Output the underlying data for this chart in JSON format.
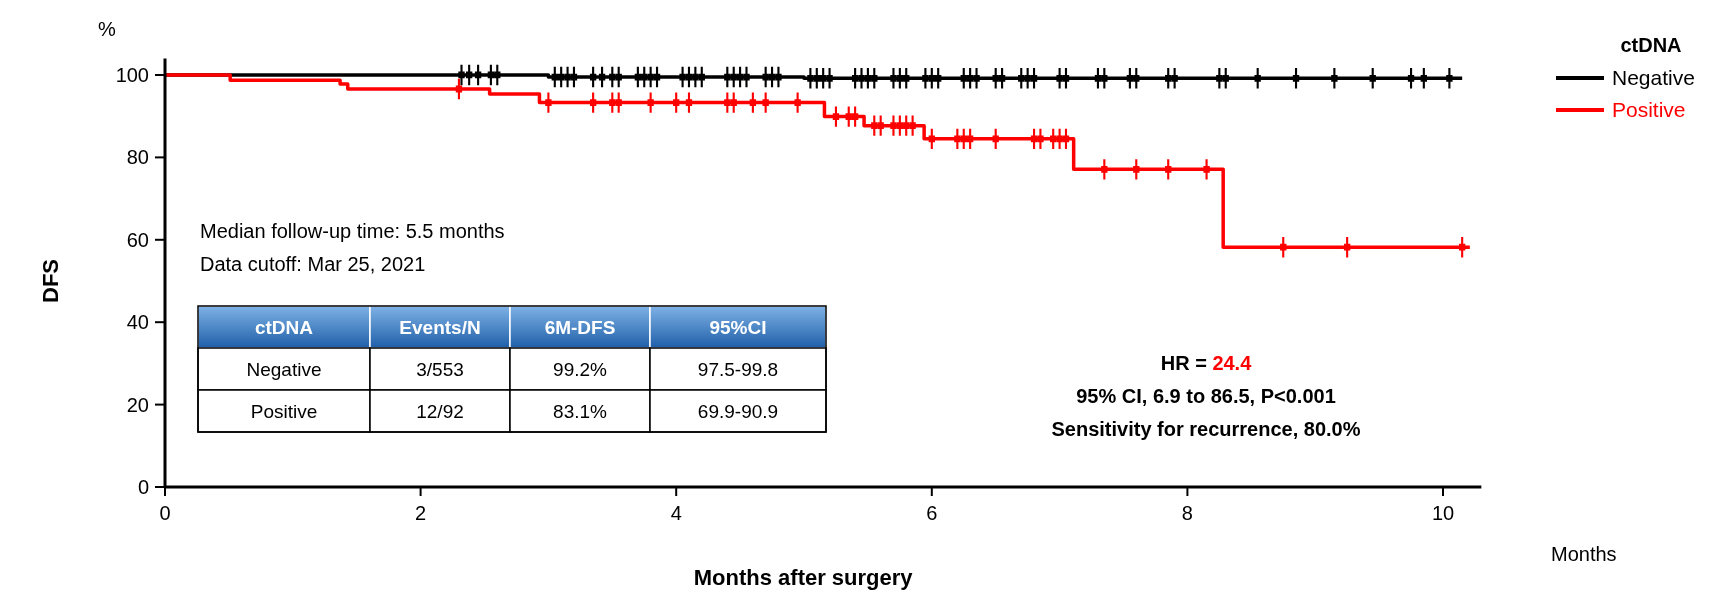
{
  "chart_data": {
    "type": "step",
    "xlabel": "Months after surgery",
    "ylabel": "DFS",
    "legend_title": "ctDNA",
    "legend": "top right",
    "xlim": [
      0,
      10.3
    ],
    "xticks": [
      0,
      2,
      4,
      6,
      8,
      10
    ],
    "ylim": [
      0,
      104
    ],
    "yticks": [
      0,
      20,
      40,
      60,
      80,
      100
    ],
    "line_style": "solid",
    "annotations": [
      "%",
      "Months",
      "Median follow-up time: 5.5 months",
      "Data cutoff: Mar 25, 2021",
      "ctDNA",
      "Events/N",
      "6M-DFS",
      "95%CI",
      "Negative",
      "3/553",
      "99.2%",
      "97.5-99.8",
      "Positive",
      "12/92",
      "83.1%",
      "69.9-90.9",
      "HR = 24.4",
      "95% CI, 6.9 to 86.5, P<0.001",
      "Sensitivity for recurrence, 80.0%"
    ],
    "series": [
      {
        "name": "Negative",
        "color": "#000000",
        "x": [
          0,
          3.0,
          5.0,
          10.15
        ],
        "values": [
          100,
          99.5,
          99.2,
          99.2
        ]
      },
      {
        "name": "Positive",
        "color": "#ff0000",
        "x": [
          0,
          0.51,
          1.37,
          1.43,
          2.54,
          2.93,
          5.16,
          5.47,
          5.94,
          7.11,
          8.28,
          10.21
        ],
        "values": [
          100,
          98.7,
          97.8,
          96.6,
          95.4,
          93.3,
          89.9,
          87.7,
          84.5,
          77.1,
          58.2,
          58.2
        ]
      },
      {
        "color": "#000000",
        "type": "scatter",
        "marker": "cross",
        "x": [
          2.32,
          2.38,
          2.45,
          2.55,
          2.6,
          3.05,
          3.1,
          3.15,
          3.2,
          3.35,
          3.42,
          3.5,
          3.55,
          3.7,
          3.75,
          3.8,
          3.85,
          4.05,
          4.1,
          4.15,
          4.2,
          4.4,
          4.45,
          4.5,
          4.55,
          4.7,
          4.75,
          4.8,
          5.05,
          5.1,
          5.15,
          5.2,
          5.4,
          5.45,
          5.5,
          5.55,
          5.7,
          5.75,
          5.8,
          5.95,
          6.0,
          6.05,
          6.25,
          6.3,
          6.35,
          6.5,
          6.55,
          6.7,
          6.75,
          6.8,
          7.0,
          7.05,
          7.3,
          7.35,
          7.55,
          7.6,
          7.85,
          7.9,
          8.25,
          8.3,
          8.55,
          8.85,
          9.15,
          9.45,
          9.75,
          9.85,
          10.05
        ],
        "values": [
          100,
          100,
          100,
          100,
          100,
          99.5,
          99.5,
          99.5,
          99.5,
          99.5,
          99.5,
          99.5,
          99.5,
          99.5,
          99.5,
          99.5,
          99.5,
          99.5,
          99.5,
          99.5,
          99.5,
          99.5,
          99.5,
          99.5,
          99.5,
          99.5,
          99.5,
          99.5,
          99.2,
          99.2,
          99.2,
          99.2,
          99.2,
          99.2,
          99.2,
          99.2,
          99.2,
          99.2,
          99.2,
          99.2,
          99.2,
          99.2,
          99.2,
          99.2,
          99.2,
          99.2,
          99.2,
          99.2,
          99.2,
          99.2,
          99.2,
          99.2,
          99.2,
          99.2,
          99.2,
          99.2,
          99.2,
          99.2,
          99.2,
          99.2,
          99.2,
          99.2,
          99.2,
          99.2,
          99.2,
          99.2,
          99.2
        ]
      },
      {
        "color": "#ff0000",
        "type": "scatter",
        "marker": "cross",
        "x": [
          2.3,
          3.0,
          3.35,
          3.5,
          3.55,
          3.8,
          4.0,
          4.1,
          4.4,
          4.45,
          4.6,
          4.7,
          4.95,
          5.25,
          5.35,
          5.4,
          5.55,
          5.6,
          5.7,
          5.75,
          5.8,
          5.85,
          6.0,
          6.2,
          6.25,
          6.3,
          6.5,
          6.8,
          6.85,
          6.95,
          7.0,
          7.05,
          7.35,
          7.6,
          7.85,
          8.15,
          8.75,
          9.25,
          10.15
        ],
        "values": [
          96.6,
          93.3,
          93.3,
          93.3,
          93.3,
          93.3,
          93.3,
          93.3,
          93.3,
          93.3,
          93.3,
          93.3,
          93.3,
          89.9,
          89.9,
          89.9,
          87.7,
          87.7,
          87.7,
          87.7,
          87.7,
          87.7,
          84.5,
          84.5,
          84.5,
          84.5,
          84.5,
          84.5,
          84.5,
          84.5,
          84.5,
          84.5,
          77.1,
          77.1,
          77.1,
          77.1,
          58.2,
          58.2,
          58.2
        ]
      }
    ]
  }
}
